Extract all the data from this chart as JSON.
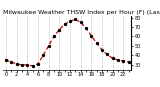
{
  "title": "Milwaukee Weather THSW Index per Hour (F) (Last 24 Hours)",
  "hours": [
    0,
    1,
    2,
    3,
    4,
    5,
    6,
    7,
    8,
    9,
    10,
    11,
    12,
    13,
    14,
    15,
    16,
    17,
    18,
    19,
    20,
    21,
    22,
    23
  ],
  "values": [
    35,
    33,
    31,
    30,
    30,
    29,
    31,
    40,
    50,
    60,
    67,
    73,
    76,
    78,
    75,
    69,
    61,
    53,
    46,
    41,
    37,
    35,
    34,
    33
  ],
  "line_color": "#cc0000",
  "marker_color": "#000000",
  "bg_color": "#ffffff",
  "grid_color": "#999999",
  "ylim_min": 25,
  "ylim_max": 82,
  "ytick_values": [
    30,
    40,
    50,
    60,
    70,
    80
  ],
  "title_fontsize": 4.5,
  "tick_fontsize": 3.5,
  "figwidth": 1.6,
  "figheight": 0.87,
  "dpi": 100
}
